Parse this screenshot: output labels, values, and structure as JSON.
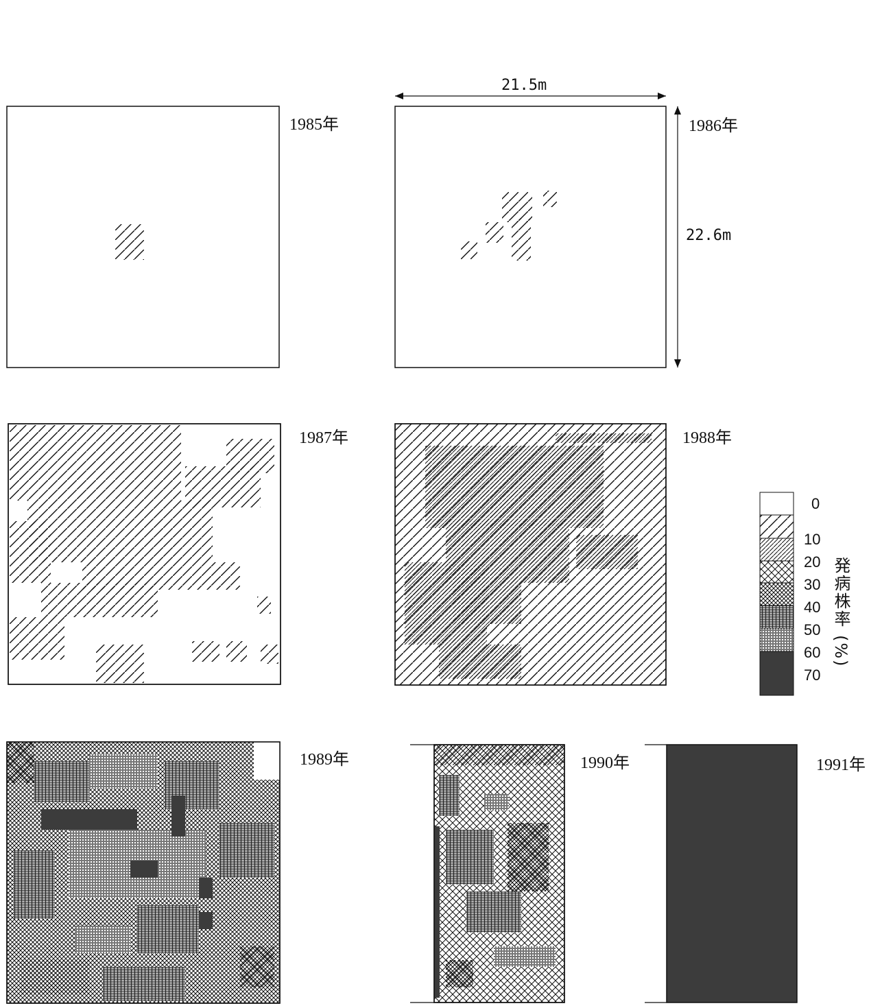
{
  "dimensions": {
    "width": "21.5m",
    "height": "22.6m"
  },
  "panels": [
    {
      "year": "1985年",
      "pattern": "p10"
    },
    {
      "year": "1986年",
      "pattern": "p10"
    },
    {
      "year": "1987年",
      "pattern": "p10"
    },
    {
      "year": "1988年",
      "pattern": "p10"
    },
    {
      "year": "1989年",
      "pattern": "p40"
    },
    {
      "year": "1990年",
      "pattern": "p40"
    },
    {
      "year": "1991年",
      "pattern": "p70"
    }
  ],
  "legend": {
    "title": "発病株率",
    "unit": "(%)",
    "ticks": [
      "0",
      "10",
      "20",
      "30",
      "40",
      "50",
      "60",
      "70"
    ],
    "patterns": [
      "p0",
      "p10",
      "p20",
      "p30",
      "p40",
      "p50",
      "p60",
      "p70"
    ]
  },
  "colors": {
    "ink": "#111111",
    "fill_max": "#3c3c3c"
  }
}
